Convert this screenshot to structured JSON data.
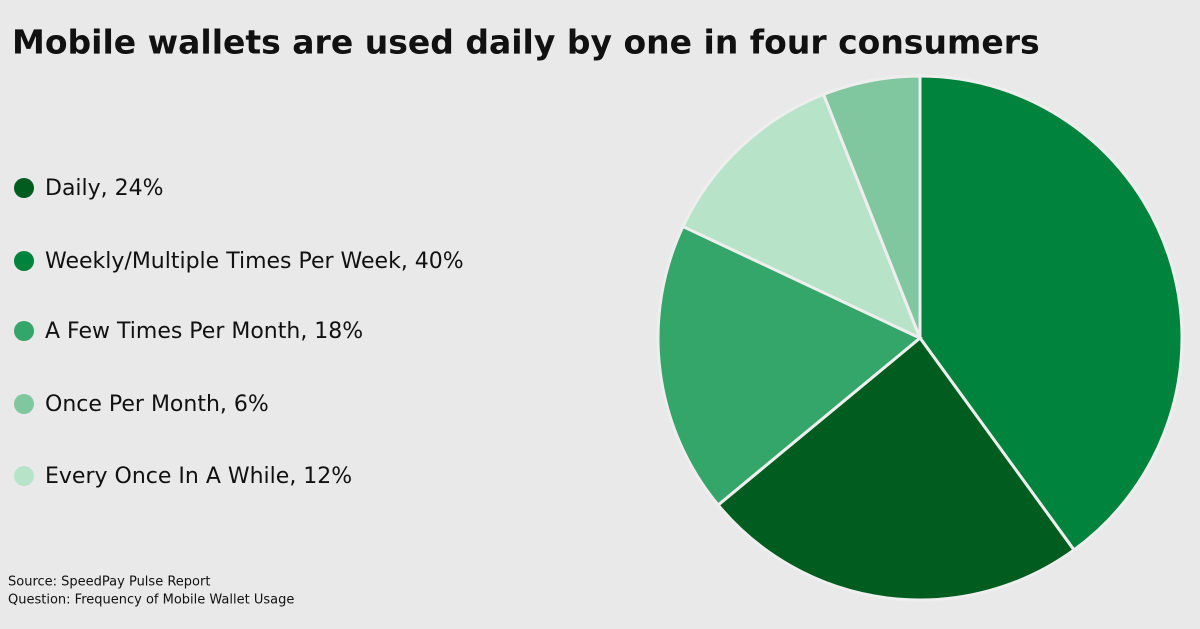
{
  "chart_data": {
    "type": "pie",
    "title": "Mobile wallets are used daily by one in four consumers",
    "categories": [
      "Daily, 24%",
      "Weekly/Multiple Times Per Week, 40%",
      "A Few Times Per Month, 18%",
      "Once Per Month, 6%",
      "Every Once In A While, 12%"
    ],
    "values": [
      24,
      40,
      18,
      6,
      12
    ],
    "colors": [
      "#005c1f",
      "#00843d",
      "#35a66a",
      "#80c79f",
      "#b7e3c9"
    ],
    "source": "Source: SpeedPay Pulse Report",
    "question": "Question: Frequency of Mobile Wallet Usage"
  }
}
